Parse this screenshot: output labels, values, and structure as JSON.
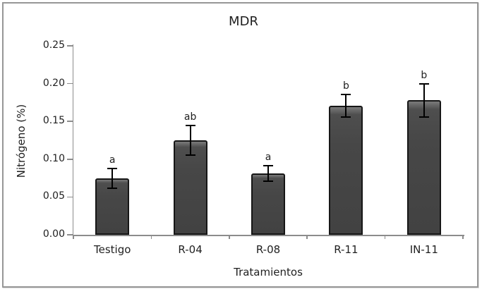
{
  "chart_data": {
    "type": "bar",
    "title": "MDR",
    "xlabel": "Tratamientos",
    "ylabel": "Nitrógeno (%)",
    "categories": [
      "Testigo",
      "R-04",
      "R-08",
      "R-11",
      "IN-11"
    ],
    "values": [
      0.075,
      0.125,
      0.081,
      0.171,
      0.178
    ],
    "errors": [
      0.013,
      0.02,
      0.01,
      0.015,
      0.022
    ],
    "sig_letters": [
      "a",
      "ab",
      "a",
      "b",
      "b"
    ],
    "ylim": [
      0,
      0.25
    ],
    "ytick_step": 0.05,
    "ytick_labels": [
      "0.00",
      "0.05",
      "0.10",
      "0.15",
      "0.20",
      "0.25"
    ],
    "grid": false,
    "legend": "none",
    "colors": {
      "bar_fill": "#424242",
      "bar_highlight": "#7b7b7b",
      "bar_border": "#161616",
      "axis": "#8c8c8c",
      "error_bar": "#000000",
      "text": "#1f1f1f",
      "frame_border": "#979797",
      "background": "#ffffff"
    }
  }
}
